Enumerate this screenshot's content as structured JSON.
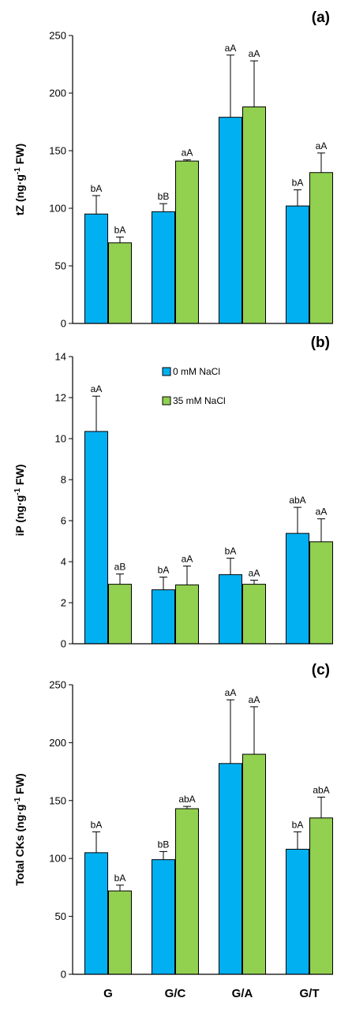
{
  "chart_data": [
    {
      "type": "bar",
      "panel_label": "(a)",
      "ylabel": "tZ (ng·g⁻¹ FW)",
      "ylim": [
        0,
        250
      ],
      "yticks": [
        0,
        50,
        100,
        150,
        200,
        250
      ],
      "categories": [
        "G",
        "G/C",
        "G/A",
        "G/T"
      ],
      "series": [
        {
          "name": "0 mM NaCl",
          "color": "#00B0F0",
          "values": [
            95,
            97,
            179,
            102
          ],
          "errors": [
            16,
            7,
            54,
            14
          ],
          "labels": [
            "bA",
            "bB",
            "aA",
            "bA"
          ]
        },
        {
          "name": "35 mM NaCl",
          "color": "#92D050",
          "values": [
            70,
            141,
            188,
            131
          ],
          "errors": [
            5,
            1,
            40,
            17
          ],
          "labels": [
            "bA",
            "aA",
            "aA",
            "aA"
          ]
        }
      ]
    },
    {
      "type": "bar",
      "panel_label": "(b)",
      "ylabel": "iP (ng·g⁻¹ FW)",
      "ylim": [
        0,
        14
      ],
      "yticks": [
        0,
        2,
        4,
        6,
        8,
        10,
        12,
        14
      ],
      "categories": [
        "G",
        "G/C",
        "G/A",
        "G/T"
      ],
      "series": [
        {
          "name": "0 mM NaCl",
          "color": "#00B0F0",
          "values": [
            10.35,
            2.63,
            3.37,
            5.38
          ],
          "errors": [
            1.72,
            0.62,
            0.8,
            1.27
          ],
          "labels": [
            "aA",
            "bA",
            "bA",
            "abA"
          ]
        },
        {
          "name": "35 mM NaCl",
          "color": "#92D050",
          "values": [
            2.9,
            2.87,
            2.9,
            4.97
          ],
          "errors": [
            0.5,
            0.92,
            0.2,
            1.12
          ],
          "labels": [
            "aB",
            "aA",
            "aA",
            "aA"
          ]
        }
      ]
    },
    {
      "type": "bar",
      "panel_label": "(c)",
      "ylabel": "Total CKs (ng·g⁻¹ FW)",
      "ylim": [
        0,
        250
      ],
      "yticks": [
        0,
        50,
        100,
        150,
        200,
        250
      ],
      "categories": [
        "G",
        "G/C",
        "G/A",
        "G/T"
      ],
      "series": [
        {
          "name": "0 mM NaCl",
          "color": "#00B0F0",
          "values": [
            105,
            99,
            182,
            108
          ],
          "errors": [
            18,
            7,
            55,
            15
          ],
          "labels": [
            "bA",
            "bB",
            "aA",
            "bA"
          ]
        },
        {
          "name": "35 mM NaCl",
          "color": "#92D050",
          "values": [
            72,
            143,
            190,
            135
          ],
          "errors": [
            5,
            2,
            41,
            18
          ],
          "labels": [
            "bA",
            "abA",
            "aA",
            "abA"
          ]
        }
      ]
    }
  ],
  "legend": {
    "placement": "top-center of panel (b)",
    "items": [
      {
        "label": "0 mM NaCl",
        "color": "#00B0F0"
      },
      {
        "label": "35 mM NaCl",
        "color": "#92D050"
      }
    ]
  },
  "xcategories": [
    "G",
    "G/C",
    "G/A",
    "G/T"
  ]
}
